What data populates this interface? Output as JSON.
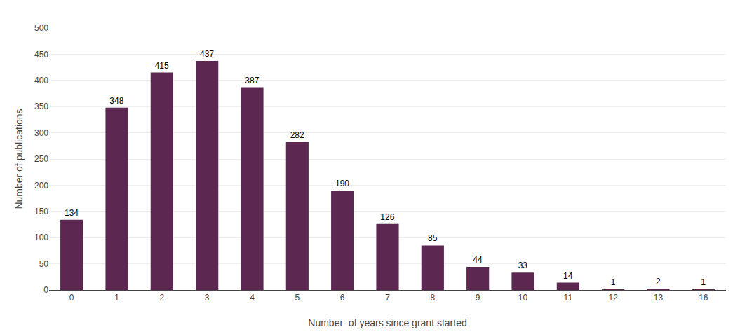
{
  "chart_data": {
    "type": "bar",
    "categories": [
      "0",
      "1",
      "2",
      "3",
      "4",
      "5",
      "6",
      "7",
      "8",
      "9",
      "10",
      "11",
      "12",
      "13",
      "16"
    ],
    "values": [
      134,
      348,
      415,
      437,
      387,
      282,
      190,
      126,
      85,
      44,
      33,
      14,
      1,
      2,
      1
    ],
    "color": "#5c2751",
    "xlabel": "Number  of years since grant started",
    "ylabel": "Number of publications",
    "ylim": [
      0,
      500
    ],
    "yticks": [
      0,
      50,
      100,
      150,
      200,
      250,
      300,
      350,
      400,
      450,
      500
    ],
    "grid": true,
    "data_labels": true
  }
}
